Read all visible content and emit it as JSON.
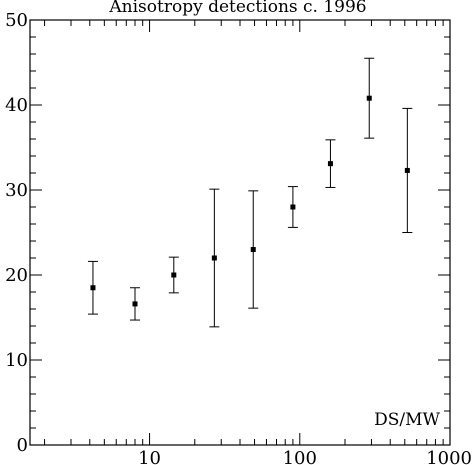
{
  "chart_data": {
    "type": "scatter",
    "title": "Anisotropy detections c. 1996",
    "xlabel": "",
    "ylabel": "",
    "x_scale": "log",
    "xlim": [
      1.6,
      1000
    ],
    "ylim": [
      0,
      50
    ],
    "x_ticks": [
      10,
      100,
      1000
    ],
    "x_tick_labels": [
      "10",
      "100",
      "1000"
    ],
    "y_ticks": [
      0,
      10,
      20,
      30,
      40,
      50
    ],
    "y_tick_labels": [
      "0",
      "10",
      "20",
      "30",
      "40",
      "50"
    ],
    "annotation": "DS/MW",
    "grid": false,
    "points": [
      {
        "x": 4.2,
        "y": 18.5,
        "y_low": 15.4,
        "y_high": 21.6
      },
      {
        "x": 8.0,
        "y": 16.6,
        "y_low": 14.7,
        "y_high": 18.5
      },
      {
        "x": 14.5,
        "y": 20.0,
        "y_low": 17.9,
        "y_high": 22.1
      },
      {
        "x": 27.0,
        "y": 22.0,
        "y_low": 13.9,
        "y_high": 30.1
      },
      {
        "x": 49.0,
        "y": 23.0,
        "y_low": 16.1,
        "y_high": 29.9
      },
      {
        "x": 90.0,
        "y": 28.0,
        "y_low": 25.6,
        "y_high": 30.4
      },
      {
        "x": 160.0,
        "y": 33.1,
        "y_low": 30.3,
        "y_high": 35.9
      },
      {
        "x": 290.0,
        "y": 40.8,
        "y_low": 36.1,
        "y_high": 45.5
      },
      {
        "x": 520.0,
        "y": 32.3,
        "y_low": 25.0,
        "y_high": 39.6
      }
    ]
  }
}
